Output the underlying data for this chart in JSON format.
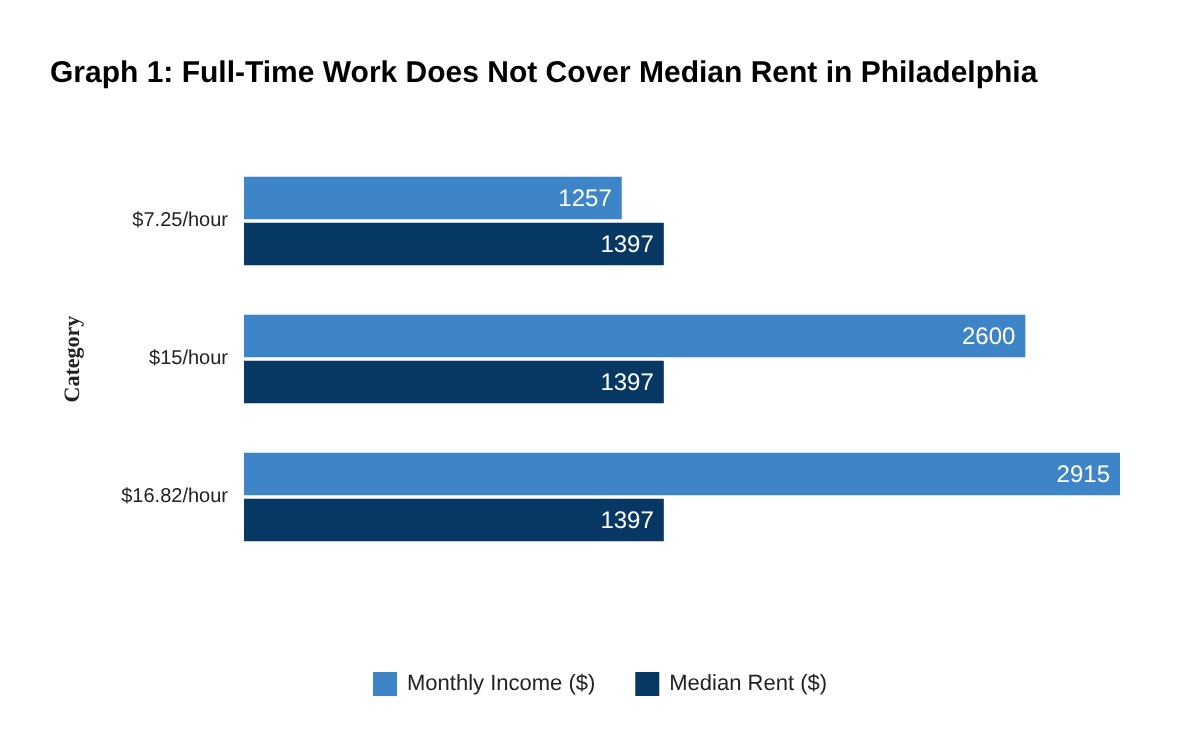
{
  "chart_data": {
    "type": "bar",
    "orientation": "horizontal",
    "title": "Graph 1: Full-Time Work Does Not Cover Median Rent in Philadelphia",
    "ylabel": "Category",
    "categories": [
      "$7.25/hour",
      "$15/hour",
      "$16.82/hour"
    ],
    "series": [
      {
        "name": "Monthly Income ($)",
        "color": "#3d85c6",
        "values": [
          1257,
          2600,
          2915
        ]
      },
      {
        "name": "Median Rent ($)",
        "color": "#073763",
        "values": [
          1397,
          1397,
          1397
        ]
      }
    ],
    "data_labels": true,
    "legend": "bottom",
    "grid": false
  }
}
